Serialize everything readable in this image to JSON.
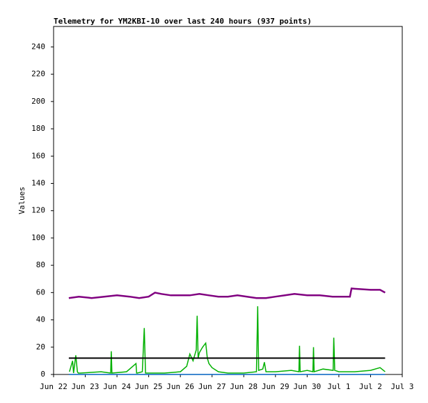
{
  "chart_data": {
    "type": "line",
    "title": "Telemetry for YM2KBI-10 over last 240 hours (937 points)",
    "y_label": "Values",
    "xlim": [
      0,
      11
    ],
    "xticks": [
      {
        "value": 0,
        "label": "Jun 22"
      },
      {
        "value": 1,
        "label": "Jun 23"
      },
      {
        "value": 2,
        "label": "Jun 24"
      },
      {
        "value": 3,
        "label": "Jun 25"
      },
      {
        "value": 4,
        "label": "Jun 26"
      },
      {
        "value": 5,
        "label": "Jun 27"
      },
      {
        "value": 6,
        "label": "Jun 28"
      },
      {
        "value": 7,
        "label": "Jun 29"
      },
      {
        "value": 8,
        "label": "Jun 30"
      },
      {
        "value": 9,
        "label": "Jul 1"
      },
      {
        "value": 10,
        "label": "Jul 2"
      },
      {
        "value": 11,
        "label": "Jul 3"
      }
    ],
    "ylim": [
      0,
      255
    ],
    "yticks": [
      0,
      20,
      40,
      60,
      80,
      100,
      120,
      140,
      160,
      180,
      200,
      220,
      240
    ],
    "grid": false,
    "series": [
      {
        "color": "#00b000",
        "x": [
          0.5,
          0.6,
          0.63,
          0.7,
          0.75,
          0.78,
          0.85,
          1.5,
          1.8,
          1.82,
          1.84,
          2.3,
          2.6,
          2.62,
          2.64,
          2.8,
          2.86,
          2.9,
          3.5,
          4.0,
          4.2,
          4.3,
          4.4,
          4.5,
          4.53,
          4.56,
          4.6,
          4.7,
          4.8,
          4.85,
          4.9,
          5.0,
          5.2,
          5.5,
          6.0,
          6.4,
          6.44,
          6.47,
          6.6,
          6.65,
          6.7,
          7.0,
          7.5,
          7.74,
          7.76,
          7.78,
          8.0,
          8.18,
          8.2,
          8.22,
          8.5,
          8.82,
          8.84,
          8.87,
          9.0,
          9.5,
          10.0,
          10.3,
          10.46
        ],
        "values": [
          2,
          10,
          1,
          14,
          2,
          1,
          1,
          2,
          1,
          17,
          1,
          2,
          8,
          1,
          1,
          2,
          34,
          1,
          1,
          2,
          6,
          15,
          10,
          18,
          43,
          12,
          16,
          20,
          23,
          12,
          8,
          5,
          2,
          1,
          1,
          2,
          50,
          3,
          4,
          9,
          2,
          2,
          3,
          2,
          21,
          2,
          3,
          2,
          20,
          2,
          4,
          3,
          27,
          3,
          2,
          2,
          3,
          5,
          2
        ]
      },
      {
        "color": "#000000",
        "x": [
          0.48,
          10.46
        ],
        "values": [
          12,
          12
        ]
      },
      {
        "color": "#800080",
        "x": [
          0.48,
          0.8,
          1.2,
          1.6,
          2.0,
          2.4,
          2.7,
          3.0,
          3.2,
          3.4,
          3.7,
          4.0,
          4.3,
          4.6,
          4.9,
          5.2,
          5.5,
          5.8,
          6.1,
          6.4,
          6.7,
          7.0,
          7.3,
          7.6,
          8.0,
          8.4,
          8.8,
          9.35,
          9.4,
          10.0,
          10.3,
          10.46
        ],
        "values": [
          56,
          57,
          56,
          57,
          58,
          57,
          56,
          57,
          60,
          59,
          58,
          58,
          58,
          59,
          58,
          57,
          57,
          58,
          57,
          56,
          56,
          57,
          58,
          59,
          58,
          58,
          57,
          57,
          63,
          62,
          62,
          60
        ]
      },
      {
        "color": "#0060c0",
        "x": [
          0.48,
          10.46
        ],
        "values": [
          0,
          0
        ]
      }
    ]
  }
}
